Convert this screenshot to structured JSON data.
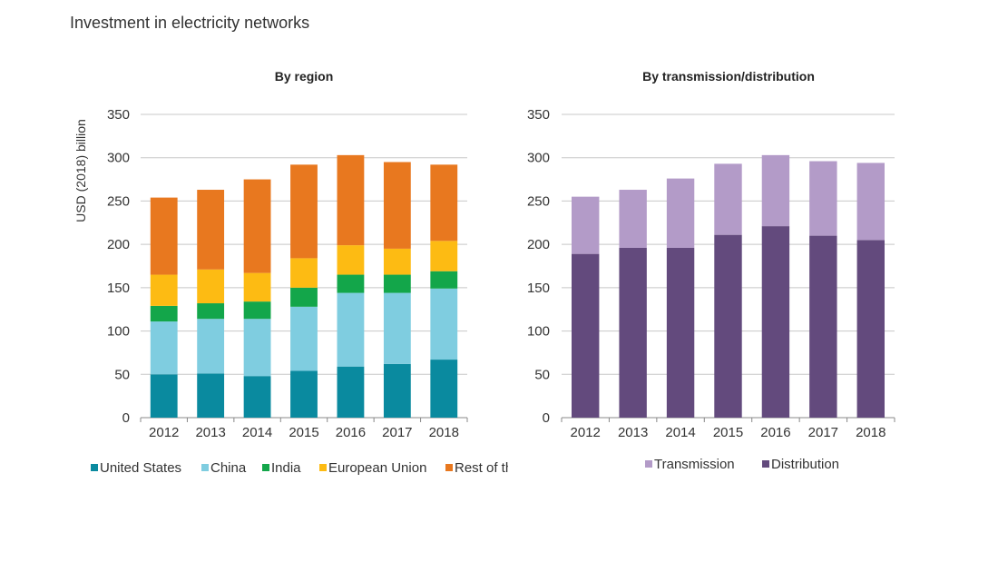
{
  "title": "Investment in electricity networks",
  "colors": {
    "us": "#0a8a9f",
    "china": "#7fcde0",
    "india": "#13a64a",
    "eu": "#fdbb13",
    "row": "#e8781f",
    "transmission": "#b39bc8",
    "distribution": "#634a7d"
  },
  "chart_data": [
    {
      "type": "bar",
      "stacked": true,
      "title": "By region",
      "ylabel": "USD (2018) billion",
      "xlabel": "",
      "ylim": [
        0,
        350
      ],
      "yticks": [
        0,
        50,
        100,
        150,
        200,
        250,
        300,
        350
      ],
      "categories": [
        "2012",
        "2013",
        "2014",
        "2015",
        "2016",
        "2017",
        "2018"
      ],
      "legend_position": "bottom",
      "series": [
        {
          "name": "United States",
          "color_key": "us",
          "values": [
            50,
            51,
            48,
            54,
            59,
            62,
            67
          ]
        },
        {
          "name": "China",
          "color_key": "china",
          "values": [
            61,
            63,
            66,
            74,
            85,
            82,
            82
          ]
        },
        {
          "name": "India",
          "color_key": "india",
          "values": [
            18,
            18,
            20,
            22,
            21,
            21,
            20
          ]
        },
        {
          "name": "European Union",
          "color_key": "eu",
          "values": [
            36,
            39,
            33,
            34,
            34,
            30,
            35
          ]
        },
        {
          "name": "Rest of the world",
          "color_key": "row",
          "values": [
            89,
            92,
            108,
            108,
            104,
            100,
            88
          ]
        }
      ]
    },
    {
      "type": "bar",
      "stacked": true,
      "title": "By transmission/distribution",
      "ylabel": "",
      "xlabel": "",
      "ylim": [
        0,
        350
      ],
      "yticks": [
        0,
        50,
        100,
        150,
        200,
        250,
        300,
        350
      ],
      "categories": [
        "2012",
        "2013",
        "2014",
        "2015",
        "2016",
        "2017",
        "2018"
      ],
      "legend_position": "bottom",
      "series": [
        {
          "name": "Distribution",
          "color_key": "distribution",
          "values": [
            189,
            196,
            196,
            211,
            221,
            210,
            205
          ]
        },
        {
          "name": "Transmission",
          "color_key": "transmission",
          "values": [
            66,
            67,
            80,
            82,
            82,
            86,
            89
          ]
        }
      ],
      "legend_order": [
        "Transmission",
        "Distribution"
      ]
    }
  ]
}
